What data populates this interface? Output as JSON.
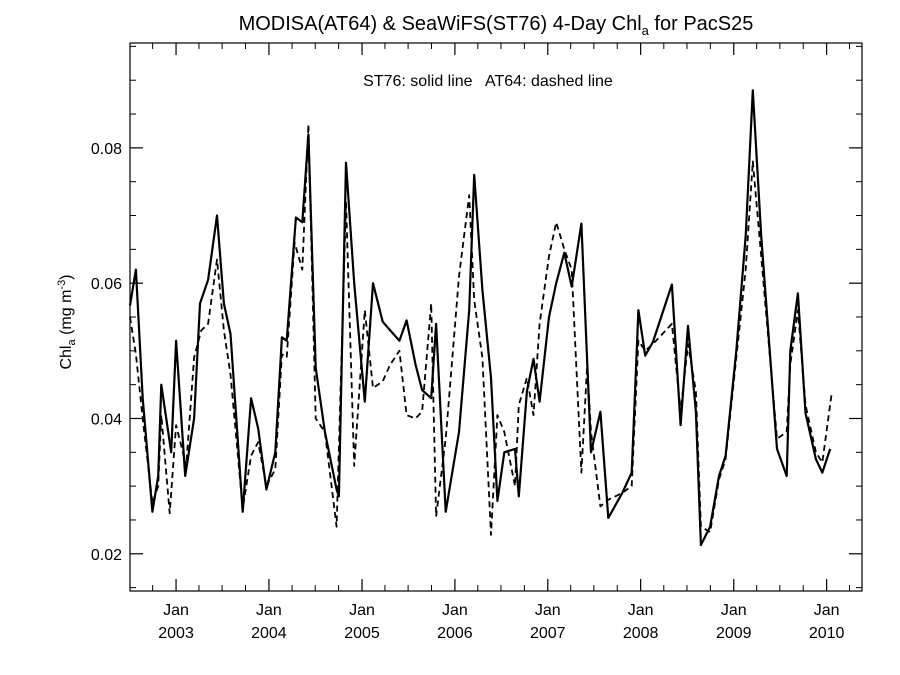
{
  "chart_data": {
    "type": "line",
    "title": {
      "main": "MODISA(AT64) & SeaWiFS(ST76) 4-Day Chl",
      "subscript": "a",
      "suffix": " for PacS25"
    },
    "annotation": "ST76: solid line   AT64: dashed line",
    "ylabel": {
      "main": "Chl",
      "subscript": "a",
      "units_prefix": " (mg m",
      "units_superscript": "-3",
      "units_suffix": ")"
    },
    "xlabel": "",
    "xlim": [
      "2002-07-04",
      "2010-05-20"
    ],
    "ylim": [
      0.0145,
      0.0955
    ],
    "yticks": [
      {
        "value": 0.02,
        "label": "0.02"
      },
      {
        "value": 0.04,
        "label": "0.04"
      },
      {
        "value": 0.06,
        "label": "0.06"
      },
      {
        "value": 0.08,
        "label": "0.08"
      }
    ],
    "xticks": [
      {
        "date": "2003-01-01",
        "month": "Jan",
        "year": "2003"
      },
      {
        "date": "2004-01-01",
        "month": "Jan",
        "year": "2004"
      },
      {
        "date": "2005-01-01",
        "month": "Jan",
        "year": "2005"
      },
      {
        "date": "2006-01-01",
        "month": "Jan",
        "year": "2006"
      },
      {
        "date": "2007-01-01",
        "month": "Jan",
        "year": "2007"
      },
      {
        "date": "2008-01-01",
        "month": "Jan",
        "year": "2008"
      },
      {
        "date": "2009-01-01",
        "month": "Jan",
        "year": "2009"
      },
      {
        "date": "2010-01-01",
        "month": "Jan",
        "year": "2010"
      }
    ],
    "grid": false,
    "series": [
      {
        "name": "ST76",
        "style": "solid",
        "color": "#000000",
        "points": [
          [
            "2002-07-04",
            0.0567
          ],
          [
            "2002-07-27",
            0.062
          ],
          [
            "2002-08-23",
            0.043
          ],
          [
            "2002-09-30",
            0.0262
          ],
          [
            "2002-10-23",
            0.0315
          ],
          [
            "2002-11-04",
            0.045
          ],
          [
            "2002-12-13",
            0.035
          ],
          [
            "2003-01-01",
            0.0515
          ],
          [
            "2003-02-06",
            0.0315
          ],
          [
            "2003-03-13",
            0.04
          ],
          [
            "2003-04-05",
            0.057
          ],
          [
            "2003-05-07",
            0.0605
          ],
          [
            "2003-06-11",
            0.07
          ],
          [
            "2003-07-08",
            0.057
          ],
          [
            "2003-08-03",
            0.0525
          ],
          [
            "2003-09-20",
            0.0262
          ],
          [
            "2003-10-23",
            0.043
          ],
          [
            "2003-11-20",
            0.0385
          ],
          [
            "2003-12-22",
            0.0295
          ],
          [
            "2004-01-26",
            0.035
          ],
          [
            "2004-02-21",
            0.052
          ],
          [
            "2004-03-11",
            0.0515
          ],
          [
            "2004-04-16",
            0.0697
          ],
          [
            "2004-05-11",
            0.069
          ],
          [
            "2004-06-04",
            0.082
          ],
          [
            "2004-07-03",
            0.0475
          ],
          [
            "2004-08-08",
            0.038
          ],
          [
            "2004-09-23",
            0.0295
          ],
          [
            "2004-10-02",
            0.0285
          ],
          [
            "2004-10-30",
            0.0778
          ],
          [
            "2004-12-01",
            0.06
          ],
          [
            "2005-01-12",
            0.0425
          ],
          [
            "2005-02-13",
            0.06
          ],
          [
            "2005-03-23",
            0.0543
          ],
          [
            "2005-04-22",
            0.053
          ],
          [
            "2005-05-28",
            0.0515
          ],
          [
            "2005-06-25",
            0.0545
          ],
          [
            "2005-07-30",
            0.048
          ],
          [
            "2005-08-25",
            0.0442
          ],
          [
            "2005-09-30",
            0.043
          ],
          [
            "2005-10-19",
            0.054
          ],
          [
            "2005-11-26",
            0.0262
          ],
          [
            "2006-01-17",
            0.038
          ],
          [
            "2006-02-26",
            0.056
          ],
          [
            "2006-03-18",
            0.076
          ],
          [
            "2006-04-19",
            0.059
          ],
          [
            "2006-05-23",
            0.046
          ],
          [
            "2006-06-17",
            0.0278
          ],
          [
            "2006-07-14",
            0.035
          ],
          [
            "2006-08-25",
            0.0355
          ],
          [
            "2006-09-09",
            0.0285
          ],
          [
            "2006-10-11",
            0.044
          ],
          [
            "2006-11-06",
            0.0488
          ],
          [
            "2006-11-30",
            0.0425
          ],
          [
            "2007-01-06",
            0.055
          ],
          [
            "2007-02-03",
            0.06
          ],
          [
            "2007-03-07",
            0.0645
          ],
          [
            "2007-04-05",
            0.0595
          ],
          [
            "2007-05-13",
            0.0688
          ],
          [
            "2007-06-20",
            0.035
          ],
          [
            "2007-07-27",
            0.041
          ],
          [
            "2007-08-27",
            0.0253
          ],
          [
            "2007-10-21",
            0.029
          ],
          [
            "2007-11-27",
            0.032
          ],
          [
            "2007-12-23",
            0.056
          ],
          [
            "2008-01-19",
            0.0493
          ],
          [
            "2008-02-18",
            0.0513
          ],
          [
            "2008-05-03",
            0.0598
          ],
          [
            "2008-06-06",
            0.039
          ],
          [
            "2008-07-05",
            0.0537
          ],
          [
            "2008-08-05",
            0.041
          ],
          [
            "2008-08-25",
            0.0213
          ],
          [
            "2008-09-30",
            0.024
          ],
          [
            "2008-11-04",
            0.0315
          ],
          [
            "2008-11-30",
            0.0345
          ],
          [
            "2009-01-11",
            0.05
          ],
          [
            "2009-02-17",
            0.067
          ],
          [
            "2009-03-17",
            0.0885
          ],
          [
            "2009-04-19",
            0.067
          ],
          [
            "2009-06-20",
            0.0355
          ],
          [
            "2009-07-28",
            0.0315
          ],
          [
            "2009-08-11",
            0.05
          ],
          [
            "2009-09-10",
            0.0585
          ],
          [
            "2009-10-10",
            0.0408
          ],
          [
            "2009-11-20",
            0.034
          ],
          [
            "2009-12-15",
            0.032
          ],
          [
            "2010-01-15",
            0.0355
          ]
        ]
      },
      {
        "name": "AT64",
        "style": "dashed",
        "color": "#000000",
        "points": [
          [
            "2002-07-04",
            0.055
          ],
          [
            "2002-07-27",
            0.0495
          ],
          [
            "2002-08-23",
            0.04
          ],
          [
            "2002-09-30",
            0.0275
          ],
          [
            "2002-10-23",
            0.03
          ],
          [
            "2002-11-04",
            0.0405
          ],
          [
            "2002-12-07",
            0.026
          ],
          [
            "2003-01-01",
            0.039
          ],
          [
            "2003-02-10",
            0.033
          ],
          [
            "2003-03-13",
            0.049
          ],
          [
            "2003-04-10",
            0.053
          ],
          [
            "2003-05-07",
            0.054
          ],
          [
            "2003-06-11",
            0.0635
          ],
          [
            "2003-07-08",
            0.053
          ],
          [
            "2003-08-03",
            0.0465
          ],
          [
            "2003-09-20",
            0.0267
          ],
          [
            "2003-10-23",
            0.0345
          ],
          [
            "2003-11-20",
            0.0365
          ],
          [
            "2003-12-22",
            0.03
          ],
          [
            "2004-01-26",
            0.0325
          ],
          [
            "2004-02-21",
            0.0495
          ],
          [
            "2004-03-11",
            0.049
          ],
          [
            "2004-04-11",
            0.066
          ],
          [
            "2004-05-11",
            0.062
          ],
          [
            "2004-06-04",
            0.0835
          ],
          [
            "2004-07-03",
            0.04
          ],
          [
            "2004-08-08",
            0.038
          ],
          [
            "2004-09-23",
            0.024
          ],
          [
            "2004-10-30",
            0.072
          ],
          [
            "2004-12-01",
            0.033
          ],
          [
            "2005-01-12",
            0.056
          ],
          [
            "2005-02-13",
            0.0445
          ],
          [
            "2005-03-23",
            0.0455
          ],
          [
            "2005-04-22",
            0.048
          ],
          [
            "2005-05-28",
            0.05
          ],
          [
            "2005-06-25",
            0.0405
          ],
          [
            "2005-07-30",
            0.04
          ],
          [
            "2005-08-25",
            0.041
          ],
          [
            "2005-09-30",
            0.057
          ],
          [
            "2005-10-19",
            0.0255
          ],
          [
            "2005-11-26",
            0.037
          ],
          [
            "2006-01-17",
            0.061
          ],
          [
            "2006-02-26",
            0.073
          ],
          [
            "2006-03-18",
            0.0575
          ],
          [
            "2006-04-19",
            0.049
          ],
          [
            "2006-05-23",
            0.0228
          ],
          [
            "2006-06-17",
            0.0405
          ],
          [
            "2006-07-14",
            0.038
          ],
          [
            "2006-08-25",
            0.03
          ],
          [
            "2006-09-09",
            0.042
          ],
          [
            "2006-10-11",
            0.046
          ],
          [
            "2006-11-06",
            0.0405
          ],
          [
            "2006-11-30",
            0.054
          ],
          [
            "2007-01-06",
            0.064
          ],
          [
            "2007-02-03",
            0.069
          ],
          [
            "2007-03-07",
            0.065
          ],
          [
            "2007-04-05",
            0.062
          ],
          [
            "2007-05-13",
            0.032
          ],
          [
            "2007-06-05",
            0.048
          ],
          [
            "2007-06-20",
            0.038
          ],
          [
            "2007-07-27",
            0.027
          ],
          [
            "2007-08-27",
            0.028
          ],
          [
            "2007-10-21",
            0.029
          ],
          [
            "2007-11-27",
            0.03
          ],
          [
            "2007-12-23",
            0.0515
          ],
          [
            "2008-01-19",
            0.05
          ],
          [
            "2008-02-18",
            0.051
          ],
          [
            "2008-05-03",
            0.054
          ],
          [
            "2008-06-06",
            0.041
          ],
          [
            "2008-07-05",
            0.051
          ],
          [
            "2008-08-05",
            0.044
          ],
          [
            "2008-08-25",
            0.024
          ],
          [
            "2008-09-30",
            0.0232
          ],
          [
            "2008-11-04",
            0.031
          ],
          [
            "2008-11-30",
            0.034
          ],
          [
            "2009-01-11",
            0.049
          ],
          [
            "2009-02-17",
            0.062
          ],
          [
            "2009-03-17",
            0.078
          ],
          [
            "2009-04-19",
            0.064
          ],
          [
            "2009-06-20",
            0.037
          ],
          [
            "2009-07-28",
            0.038
          ],
          [
            "2009-08-11",
            0.048
          ],
          [
            "2009-09-10",
            0.056
          ],
          [
            "2009-10-10",
            0.042
          ],
          [
            "2009-11-20",
            0.035
          ],
          [
            "2009-12-15",
            0.0335
          ],
          [
            "2010-01-20",
            0.0435
          ]
        ]
      }
    ]
  }
}
